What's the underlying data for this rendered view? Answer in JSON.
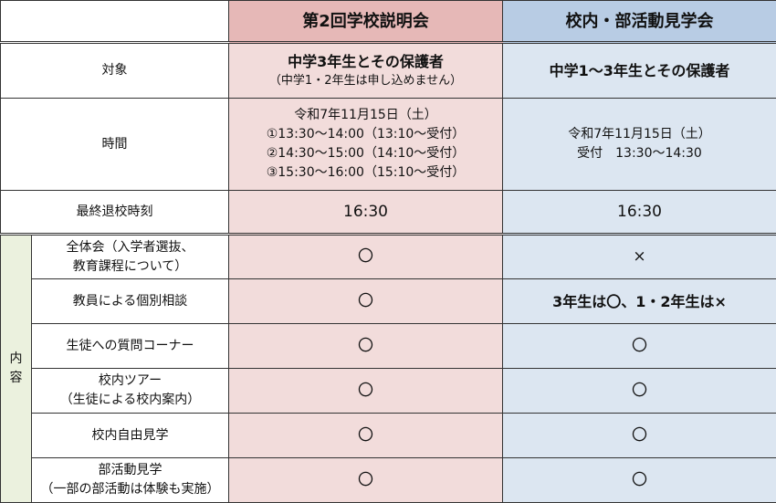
{
  "header": {
    "col1": "第2回学校説明会",
    "col2": "校内・部活動見学会"
  },
  "rows": {
    "target": {
      "label": "対象",
      "col1_main": "中学3年生とその保護者",
      "col1_note": "（中学1・2年生は申し込めません）",
      "col2": "中学1～3年生とその保護者"
    },
    "time": {
      "label": "時間",
      "col1": [
        "令和7年11月15日（土）",
        "①13:30～14:00（13:10～受付）",
        "②14:30～15:00（14:10～受付）",
        "③15:30～16:00（15:10～受付）"
      ],
      "col2": [
        "令和7年11月15日（土）",
        "受付　13:30～14:30"
      ]
    },
    "leave": {
      "label": "最終退校時刻",
      "col1": "16:30",
      "col2": "16:30"
    }
  },
  "content_group": {
    "label_lines": [
      "内",
      "容"
    ]
  },
  "content": [
    {
      "label": [
        "全体会（入学者選抜、",
        "教育課程について）"
      ],
      "col1": "〇",
      "col2": "×"
    },
    {
      "label": [
        "教員による個別相談"
      ],
      "col1": "〇",
      "col2": "3年生は〇、1・2年生は×"
    },
    {
      "label": [
        "生徒への質問コーナー"
      ],
      "col1": "〇",
      "col2": "〇"
    },
    {
      "label": [
        "校内ツアー",
        "（生徒による校内案内）"
      ],
      "col1": "〇",
      "col2": "〇"
    },
    {
      "label": [
        "校内自由見学"
      ],
      "col1": "〇",
      "col2": "〇"
    },
    {
      "label": [
        "部活動見学",
        "（一部の部活動は体験も実施）"
      ],
      "col1": "〇",
      "col2": "〇"
    }
  ],
  "colors": {
    "pink_header": "#e6b8b7",
    "pink_cell": "#f2dcdb",
    "blue_header": "#b8cce4",
    "blue_cell": "#dce6f1",
    "green_cell": "#ebf1de"
  }
}
